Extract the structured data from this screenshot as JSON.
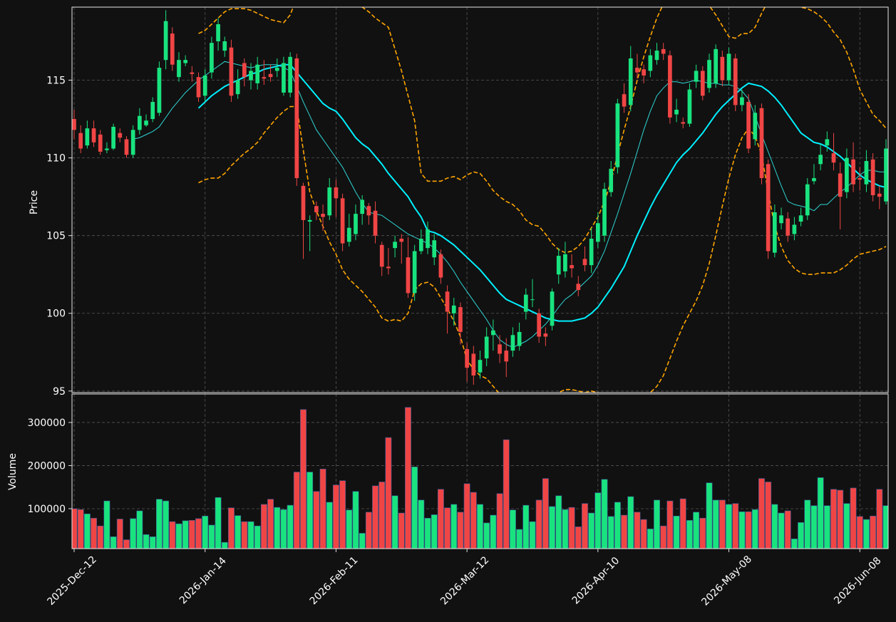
{
  "chart_data": {
    "type": "candlestick",
    "ylabel": "Price",
    "ylim": [
      94.9,
      119.7
    ],
    "yticks": [
      95,
      100,
      105,
      110,
      115
    ],
    "grid": true,
    "up_color": "#19e37f",
    "down_color": "#f04545",
    "categories": [
      "2025-Dec-12",
      null,
      null,
      null,
      null,
      null,
      null,
      null,
      null,
      null,
      null,
      null,
      null,
      null,
      null,
      null,
      null,
      null,
      null,
      null,
      "2026-Jan-14",
      null,
      null,
      null,
      null,
      null,
      null,
      null,
      null,
      null,
      null,
      null,
      null,
      null,
      null,
      null,
      null,
      null,
      null,
      null,
      "2026-Feb-11",
      null,
      null,
      null,
      null,
      null,
      null,
      null,
      null,
      null,
      null,
      null,
      null,
      null,
      null,
      null,
      null,
      null,
      null,
      null,
      "2026-Mar-12",
      null,
      null,
      null,
      null,
      null,
      null,
      null,
      null,
      null,
      null,
      null,
      null,
      null,
      null,
      null,
      null,
      null,
      null,
      null,
      "2026-Apr-10",
      null,
      null,
      null,
      null,
      null,
      null,
      null,
      null,
      null,
      null,
      null,
      null,
      null,
      null,
      null,
      null,
      null,
      null,
      null,
      "2026-May-08",
      null,
      null,
      null,
      null,
      null,
      null,
      null,
      null,
      null,
      null,
      null,
      null,
      null,
      null,
      null,
      null,
      null,
      null,
      null,
      "2026-Jun-08",
      null,
      null,
      null,
      null
    ],
    "open": [
      112.5,
      111.6,
      110.8,
      111.9,
      111.5,
      110.5,
      110.6,
      111.6,
      111.2,
      110.2,
      111.8,
      112.1,
      112.5,
      112.9,
      116.3,
      118.0,
      115.2,
      116.1,
      115.5,
      115.2,
      114.0,
      115.5,
      117.5,
      116.9,
      117.1,
      114.1,
      116.1,
      115.0,
      114.8,
      115.2,
      115.4,
      115.6,
      114.2,
      114.2,
      116.4,
      108.2,
      105.9,
      106.9,
      106.4,
      106.3,
      108.1,
      107.4,
      104.6,
      105.1,
      106.4,
      106.9,
      106.6,
      104.4,
      103.0,
      104.2,
      104.8,
      103.6,
      101.3,
      104.0,
      104.2,
      103.6,
      103.8,
      101.4,
      100.0,
      100.4,
      97.7,
      97.4,
      96.2,
      97.1,
      98.6,
      98.0,
      97.6,
      97.6,
      97.9,
      100.1,
      100.9,
      100.0,
      98.7,
      99.2,
      102.5,
      102.7,
      103.1,
      101.9,
      103.5,
      103.1,
      104.6,
      105.0,
      107.8,
      109.4,
      114.1,
      113.4,
      115.8,
      115.7,
      115.6,
      116.3,
      117.0,
      116.6,
      112.8,
      112.3,
      112.2,
      114.9,
      115.6,
      114.5,
      114.8,
      116.5,
      115.0,
      116.4,
      113.4,
      113.6,
      111.2,
      113.2,
      109.6,
      103.9,
      105.8,
      106.1,
      105.1,
      105.9,
      106.3,
      108.5,
      109.6,
      110.8,
      110.3,
      109.0,
      107.8,
      109.9,
      108.7,
      108.3,
      109.9,
      107.7,
      107.2
    ],
    "high": [
      113.1,
      112.1,
      112.4,
      112.4,
      111.8,
      111.0,
      112.2,
      111.9,
      111.4,
      112.1,
      113.2,
      112.8,
      113.9,
      116.2,
      119.5,
      118.4,
      116.8,
      116.6,
      115.9,
      115.5,
      115.7,
      117.8,
      119.0,
      117.8,
      117.6,
      115.7,
      116.4,
      116.1,
      116.5,
      116.3,
      116.0,
      116.4,
      116.5,
      116.8,
      116.7,
      108.4,
      106.3,
      107.2,
      107.0,
      108.7,
      108.6,
      107.7,
      106.4,
      107.0,
      107.6,
      107.1,
      107.2,
      104.6,
      104.2,
      105.0,
      105.1,
      104.9,
      104.4,
      105.4,
      105.9,
      105.1,
      104.1,
      101.8,
      101.0,
      100.7,
      98.1,
      97.9,
      97.6,
      99.1,
      99.6,
      98.6,
      98.4,
      99.1,
      99.4,
      101.6,
      102.2,
      100.3,
      99.1,
      101.6,
      104.2,
      104.6,
      103.8,
      102.4,
      104.3,
      105.5,
      106.5,
      108.4,
      109.8,
      113.8,
      114.8,
      117.2,
      116.7,
      116.0,
      117.0,
      117.4,
      117.4,
      116.9,
      113.8,
      112.6,
      114.8,
      116.0,
      115.9,
      116.7,
      117.3,
      116.9,
      117.1,
      116.7,
      114.4,
      114.1,
      113.4,
      113.5,
      109.9,
      107.0,
      106.8,
      106.5,
      106.2,
      106.8,
      108.7,
      109.6,
      110.9,
      111.7,
      111.6,
      109.7,
      110.6,
      111.0,
      109.4,
      110.5,
      110.3,
      108.2,
      111.2
    ],
    "low": [
      111.2,
      110.3,
      110.6,
      110.7,
      110.2,
      110.3,
      110.5,
      111.0,
      110.0,
      110.0,
      111.5,
      112.0,
      112.3,
      112.7,
      115.7,
      115.6,
      114.9,
      115.9,
      114.9,
      113.6,
      113.6,
      115.1,
      116.9,
      116.5,
      113.6,
      113.8,
      114.6,
      114.4,
      114.4,
      114.7,
      114.9,
      115.2,
      114.0,
      113.9,
      108.2,
      103.5,
      104.0,
      106.0,
      105.3,
      106.0,
      106.2,
      104.0,
      104.3,
      104.7,
      105.7,
      105.7,
      104.5,
      102.4,
      102.5,
      103.6,
      103.2,
      101.0,
      100.8,
      103.8,
      103.8,
      103.1,
      101.9,
      98.7,
      99.2,
      98.0,
      95.6,
      95.4,
      95.8,
      96.6,
      97.6,
      96.8,
      95.9,
      97.2,
      97.6,
      99.6,
      100.4,
      98.1,
      97.9,
      98.9,
      101.9,
      102.3,
      102.3,
      101.1,
      102.7,
      102.6,
      104.2,
      104.6,
      107.5,
      109.0,
      112.9,
      113.0,
      115.1,
      114.8,
      115.2,
      116.0,
      116.3,
      112.2,
      112.3,
      111.9,
      112.0,
      114.5,
      113.7,
      114.2,
      114.5,
      114.6,
      114.7,
      113.0,
      113.0,
      110.3,
      110.8,
      108.3,
      103.5,
      103.6,
      105.4,
      104.6,
      104.7,
      105.6,
      106.0,
      108.3,
      109.2,
      110.4,
      109.2,
      105.4,
      107.4,
      107.8,
      107.9,
      107.8,
      107.2,
      106.7,
      107.0
    ],
    "close": [
      111.8,
      110.6,
      111.9,
      111.0,
      110.4,
      110.6,
      112.0,
      111.3,
      110.2,
      111.8,
      112.7,
      112.4,
      113.6,
      115.8,
      118.8,
      116.0,
      116.3,
      116.3,
      115.4,
      113.9,
      115.3,
      117.4,
      118.6,
      117.5,
      114.0,
      115.0,
      115.2,
      115.6,
      116.0,
      115.1,
      115.2,
      115.8,
      116.1,
      116.5,
      108.7,
      106.0,
      106.0,
      106.5,
      106.2,
      108.1,
      107.4,
      104.5,
      105.5,
      106.4,
      107.3,
      106.3,
      105.0,
      103.0,
      102.9,
      104.6,
      104.6,
      101.3,
      104.0,
      104.8,
      105.4,
      104.7,
      102.3,
      100.1,
      100.5,
      98.8,
      96.5,
      96.0,
      97.0,
      98.5,
      98.9,
      97.4,
      96.9,
      98.6,
      98.8,
      101.2,
      100.9,
      98.5,
      98.5,
      101.4,
      103.7,
      103.8,
      102.9,
      101.5,
      103.1,
      104.8,
      105.8,
      108.0,
      109.3,
      113.5,
      113.3,
      116.4,
      115.5,
      115.3,
      116.6,
      116.9,
      116.7,
      112.6,
      113.1,
      112.2,
      114.4,
      115.6,
      114.0,
      116.3,
      117.0,
      115.0,
      116.7,
      113.4,
      113.9,
      110.6,
      112.9,
      108.7,
      104.0,
      106.5,
      106.3,
      105.0,
      105.7,
      106.3,
      108.3,
      108.7,
      110.2,
      111.2,
      109.7,
      107.5,
      110.0,
      108.3,
      108.6,
      109.8,
      107.6,
      107.5,
      110.6
    ],
    "series": [
      {
        "color": "#2fd6d6",
        "width": 1,
        "dashed": false,
        "values": [
          null,
          null,
          null,
          null,
          null,
          null,
          null,
          null,
          null,
          111.2,
          111.3,
          111.5,
          111.7,
          112.0,
          112.6,
          113.2,
          113.7,
          114.2,
          114.6,
          115.0,
          115.3,
          115.6,
          115.9,
          116.2,
          116.1,
          116.0,
          115.9,
          115.8,
          115.9,
          116.0,
          116.0,
          116.0,
          115.8,
          115.6,
          114.6,
          113.6,
          112.7,
          111.8,
          111.2,
          110.6,
          110.0,
          109.4,
          108.6,
          107.8,
          107.1,
          106.5,
          106.4,
          106.3,
          106.0,
          105.7,
          105.4,
          105.1,
          104.9,
          104.7,
          104.5,
          104.2,
          103.8,
          103.3,
          102.7,
          102.0,
          101.4,
          100.8,
          100.2,
          99.6,
          98.9,
          98.3,
          98.0,
          97.8,
          98.0,
          98.2,
          98.5,
          98.9,
          99.3,
          99.8,
          100.4,
          100.9,
          101.2,
          101.6,
          102.0,
          102.4,
          103.1,
          104.0,
          105.2,
          106.4,
          107.7,
          109.0,
          110.4,
          111.8,
          113.0,
          114.0,
          114.5,
          114.9,
          114.9,
          114.8,
          114.9,
          115.0,
          114.9,
          114.8,
          114.8,
          114.7,
          114.7,
          114.6,
          114.3,
          113.8,
          112.7,
          111.5,
          110.4,
          109.3,
          108.2,
          107.2,
          107.0,
          106.9,
          106.8,
          106.6,
          107.0,
          107.0,
          107.4,
          107.8,
          108.1,
          108.5,
          108.9,
          109.2,
          109.2,
          109.1,
          109.1
        ]
      },
      {
        "color": "#00f0ff",
        "width": 2,
        "dashed": false,
        "values": [
          null,
          null,
          null,
          null,
          null,
          null,
          null,
          null,
          null,
          null,
          null,
          null,
          null,
          null,
          null,
          null,
          null,
          null,
          null,
          113.2,
          113.6,
          114.0,
          114.3,
          114.6,
          114.8,
          115.0,
          115.2,
          115.4,
          115.5,
          115.7,
          115.8,
          115.9,
          116.0,
          116.0,
          115.5,
          115.0,
          114.5,
          114.0,
          113.5,
          113.2,
          113.0,
          112.5,
          111.9,
          111.3,
          110.9,
          110.6,
          110.1,
          109.6,
          109.0,
          108.5,
          108.0,
          107.5,
          106.8,
          106.2,
          105.3,
          105.2,
          105.0,
          104.7,
          104.4,
          104.0,
          103.6,
          103.2,
          102.8,
          102.3,
          101.8,
          101.3,
          100.9,
          100.7,
          100.5,
          100.3,
          100.1,
          99.9,
          99.7,
          99.6,
          99.5,
          99.5,
          99.5,
          99.6,
          99.7,
          100.0,
          100.4,
          101.0,
          101.6,
          102.3,
          103.0,
          104.0,
          105.0,
          105.9,
          106.8,
          107.6,
          108.3,
          109.0,
          109.7,
          110.2,
          110.6,
          111.1,
          111.6,
          112.2,
          112.8,
          113.3,
          113.7,
          114.1,
          114.5,
          114.8,
          114.7,
          114.6,
          114.3,
          113.9,
          113.4,
          112.8,
          112.2,
          111.6,
          111.3,
          111.0,
          110.9,
          110.7,
          110.4,
          110.1,
          109.7,
          109.3,
          108.9,
          108.6,
          108.4,
          108.2,
          108.1
        ]
      },
      {
        "color": "#ffa500",
        "width": 1.6,
        "dashed": true,
        "values": [
          null,
          null,
          null,
          null,
          null,
          null,
          null,
          null,
          null,
          null,
          null,
          null,
          null,
          null,
          null,
          null,
          null,
          null,
          null,
          118.0,
          118.2,
          118.6,
          119.0,
          119.4,
          119.6,
          119.6,
          119.6,
          119.5,
          119.3,
          119.1,
          118.9,
          118.8,
          118.7,
          119.2,
          120.3,
          121.0,
          121.3,
          121.4,
          121.3,
          121.1,
          120.8,
          120.5,
          120.2,
          119.9,
          119.7,
          119.4,
          119.0,
          118.7,
          118.4,
          117.0,
          115.6,
          114.0,
          112.4,
          109.0,
          108.5,
          108.5,
          108.5,
          108.7,
          108.8,
          108.6,
          108.9,
          109.1,
          109.0,
          108.5,
          107.9,
          107.5,
          107.2,
          107.0,
          106.6,
          106.0,
          105.7,
          105.6,
          105.1,
          104.5,
          104.1,
          103.9,
          104.0,
          104.3,
          104.8,
          105.5,
          106.2,
          107.2,
          108.5,
          110.2,
          111.8,
          113.3,
          115.0,
          116.5,
          117.8,
          119.0,
          119.9,
          120.8,
          121.4,
          121.6,
          121.5,
          121.0,
          120.4,
          119.8,
          119.2,
          118.5,
          117.8,
          117.7,
          118.0,
          118.0,
          118.4,
          119.3,
          120.1,
          120.5,
          120.5,
          120.2,
          119.9,
          119.7,
          119.6,
          119.4,
          119.1,
          118.7,
          118.1,
          117.6,
          116.8,
          115.7,
          114.4,
          113.6,
          112.8,
          112.4,
          111.9
        ]
      },
      {
        "color": "#ffa500",
        "width": 1.6,
        "dashed": true,
        "values": [
          null,
          null,
          null,
          null,
          null,
          null,
          null,
          null,
          null,
          null,
          null,
          null,
          null,
          null,
          null,
          null,
          null,
          null,
          null,
          108.4,
          108.6,
          108.7,
          108.7,
          109.0,
          109.5,
          109.9,
          110.3,
          110.6,
          111.0,
          111.6,
          112.1,
          112.6,
          113.0,
          113.3,
          113.3,
          110.5,
          107.8,
          106.6,
          105.6,
          104.6,
          103.8,
          102.8,
          102.2,
          101.8,
          101.4,
          100.9,
          100.4,
          99.7,
          99.5,
          99.6,
          99.5,
          100.0,
          101.5,
          101.9,
          102.0,
          101.7,
          101.0,
          100.3,
          99.5,
          98.5,
          97.0,
          96.4,
          96.0,
          95.8,
          95.3,
          94.8,
          94.5,
          94.2,
          94.0,
          93.9,
          93.8,
          93.8,
          94.0,
          94.4,
          94.9,
          95.1,
          95.1,
          95.0,
          94.9,
          95.0,
          94.9,
          94.6,
          94.4,
          94.3,
          94.3,
          94.4,
          94.6,
          94.8,
          94.9,
          95.3,
          96.0,
          97.1,
          98.2,
          99.2,
          100.0,
          100.8,
          101.8,
          103.2,
          105.0,
          106.9,
          108.7,
          110.2,
          111.3,
          111.9,
          111.4,
          110.2,
          107.8,
          105.6,
          104.3,
          103.4,
          102.9,
          102.6,
          102.5,
          102.5,
          102.6,
          102.6,
          102.6,
          102.8,
          103.1,
          103.5,
          103.8,
          103.9,
          104.0,
          104.1,
          104.3
        ]
      }
    ],
    "volume": {
      "ylabel": "Volume",
      "ylim": [
        7400,
        366000
      ],
      "yticks": [
        100000,
        200000,
        300000
      ],
      "values": [
        100000,
        98000,
        88000,
        78000,
        60000,
        118000,
        35000,
        76000,
        28000,
        77000,
        95000,
        40000,
        35000,
        122000,
        118000,
        70000,
        65000,
        72000,
        73000,
        77000,
        83000,
        62000,
        126000,
        22000,
        102000,
        84000,
        70000,
        70000,
        60000,
        110000,
        122000,
        103000,
        98000,
        108000,
        185000,
        330000,
        185000,
        140000,
        192000,
        115000,
        155000,
        165000,
        97000,
        140000,
        43000,
        92000,
        153000,
        162000,
        265000,
        130000,
        90000,
        335000,
        197000,
        120000,
        78000,
        86000,
        145000,
        102000,
        110000,
        92000,
        158000,
        138000,
        110000,
        67000,
        85000,
        135000,
        260000,
        97000,
        52000,
        108000,
        70000,
        120000,
        170000,
        105000,
        130000,
        98000,
        103000,
        58000,
        112000,
        90000,
        137000,
        168000,
        82000,
        115000,
        85000,
        128000,
        92000,
        75000,
        53000,
        120000,
        60000,
        118000,
        83000,
        123000,
        73000,
        92000,
        78000,
        160000,
        120000,
        120000,
        110000,
        112000,
        93000,
        93000,
        98000,
        170000,
        162000,
        110000,
        90000,
        95000,
        30000,
        68000,
        120000,
        107000,
        172000,
        107000,
        145000,
        143000,
        112000,
        148000,
        82000,
        75000,
        83000,
        145000,
        107000
      ]
    }
  }
}
